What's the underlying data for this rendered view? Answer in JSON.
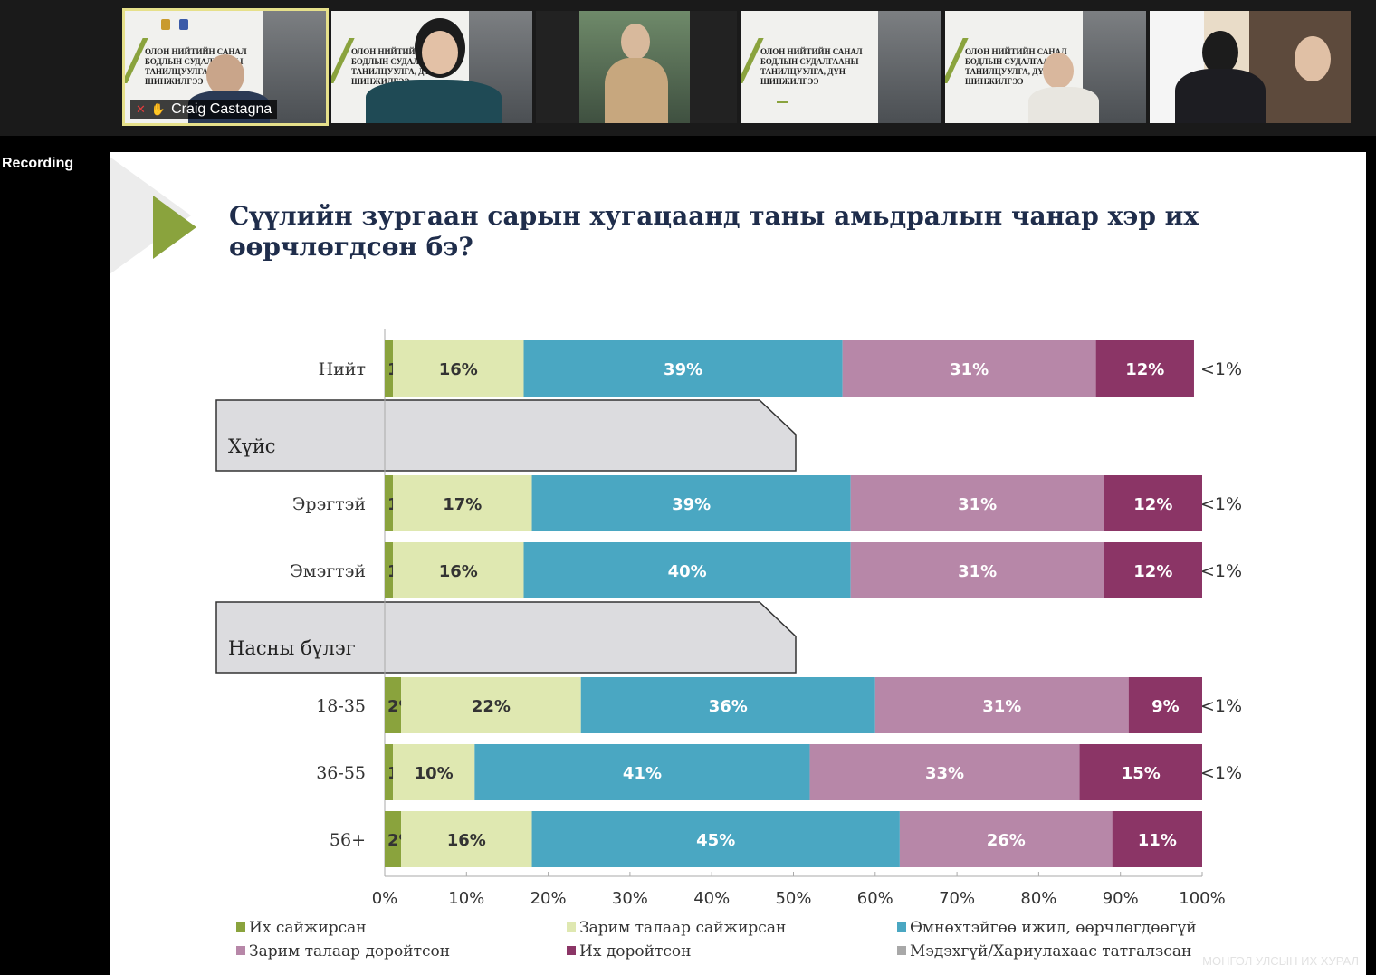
{
  "participants": [
    {
      "name": "Craig Castagna",
      "kind": "person-slide",
      "active": true
    },
    {
      "name": "",
      "kind": "person-slide"
    },
    {
      "name": "",
      "kind": "person-photo"
    },
    {
      "name": "",
      "kind": "slide"
    },
    {
      "name": "",
      "kind": "person-slide"
    },
    {
      "name": "",
      "kind": "person-slide"
    }
  ],
  "tile_slide_title": "ОЛОН НИЙТИЙН САНАЛ\nБОДЛЫН СУДАЛГААНЫ\nТАНИЛЦУУЛГА, ДҮН\nШИНЖИЛГЭЭ",
  "recording_label": "Recording",
  "slide": {
    "title": "Сүүлийн зургаан сарын хугацаанд таны амьдралын чанар хэр их өөрчлөгдсөн бэ?",
    "watermark": "МОНГОЛ УЛСЫН ИХ ХУРАЛ"
  },
  "chart_data": {
    "type": "bar",
    "orientation": "horizontal-stacked-100",
    "title": "Сүүлийн зургаан сарын хугацаанд таны амьдралын чанар хэр их өөрчлөгдсөн бэ?",
    "section_headers": [
      "Хүйс",
      "Насны бүлэг"
    ],
    "categories": [
      "Нийт",
      "Эрэгтэй",
      "Эмэгтэй",
      "18-35",
      "36-55",
      "56+"
    ],
    "series": [
      {
        "name": "Их сайжирсан",
        "color": "#8aa33d",
        "values": [
          1,
          1,
          1,
          2,
          1,
          2
        ],
        "labels": [
          "1%",
          "1%",
          "1%",
          "2%",
          "1%",
          "2%"
        ]
      },
      {
        "name": "Зарим талаар сайжирсан",
        "color": "#dfe8b1",
        "values": [
          16,
          17,
          16,
          22,
          10,
          16
        ],
        "labels": [
          "16%",
          "17%",
          "16%",
          "22%",
          "10%",
          "16%"
        ]
      },
      {
        "name": "Өмнөхтэйгөө ижил, өөрчлөгдөөгүй",
        "color": "#4aa7c2",
        "values": [
          39,
          39,
          40,
          36,
          41,
          45
        ],
        "labels": [
          "39%",
          "39%",
          "40%",
          "36%",
          "41%",
          "45%"
        ]
      },
      {
        "name": "Зарим талаар доройтсон",
        "color": "#b787a8",
        "values": [
          31,
          31,
          31,
          31,
          33,
          26
        ],
        "labels": [
          "31%",
          "31%",
          "31%",
          "31%",
          "33%",
          "26%"
        ]
      },
      {
        "name": "Их доройтсон",
        "color": "#8b3566",
        "values": [
          12,
          12,
          12,
          9,
          15,
          11
        ],
        "labels": [
          "12%",
          "12%",
          "12%",
          "9%",
          "15%",
          "11%"
        ]
      },
      {
        "name": "Мэдэхгүй/Хариулахаас татгалзсан",
        "color": "#a8a8a8",
        "values": [
          0.5,
          0.5,
          0.5,
          0.5,
          0.5,
          0
        ],
        "labels": [
          "<1%",
          "<1%",
          "<1%",
          "<1%",
          "<1%",
          ""
        ]
      }
    ],
    "xlim": [
      0,
      100
    ],
    "xticks": [
      "0%",
      "10%",
      "20%",
      "30%",
      "40%",
      "50%",
      "60%",
      "70%",
      "80%",
      "90%",
      "100%"
    ],
    "legend_position": "bottom"
  }
}
